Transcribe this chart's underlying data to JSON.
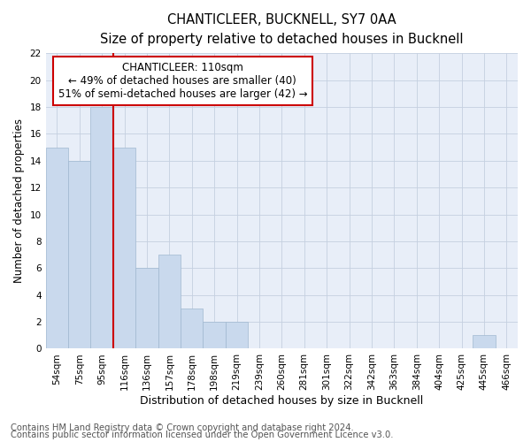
{
  "title": "CHANTICLEER, BUCKNELL, SY7 0AA",
  "subtitle": "Size of property relative to detached houses in Bucknell",
  "xlabel": "Distribution of detached houses by size in Bucknell",
  "ylabel": "Number of detached properties",
  "footnote1": "Contains HM Land Registry data © Crown copyright and database right 2024.",
  "footnote2": "Contains public sector information licensed under the Open Government Licence v3.0.",
  "categories": [
    "54sqm",
    "75sqm",
    "95sqm",
    "116sqm",
    "136sqm",
    "157sqm",
    "178sqm",
    "198sqm",
    "219sqm",
    "239sqm",
    "260sqm",
    "281sqm",
    "301sqm",
    "322sqm",
    "342sqm",
    "363sqm",
    "384sqm",
    "404sqm",
    "425sqm",
    "445sqm",
    "466sqm"
  ],
  "values": [
    15,
    14,
    18,
    15,
    6,
    7,
    3,
    2,
    2,
    0,
    0,
    0,
    0,
    0,
    0,
    0,
    0,
    0,
    0,
    1,
    0
  ],
  "bar_color": "#c9d9ed",
  "bar_edge_color": "#a0b8d0",
  "vline_x": 3.0,
  "vline_color": "#cc0000",
  "annotation_line1": "CHANTICLEER: 110sqm",
  "annotation_line2": "← 49% of detached houses are smaller (40)",
  "annotation_line3": "51% of semi-detached houses are larger (42) →",
  "annotation_box_color": "#ffffff",
  "annotation_box_edge": "#cc0000",
  "ylim": [
    0,
    22
  ],
  "yticks": [
    0,
    2,
    4,
    6,
    8,
    10,
    12,
    14,
    16,
    18,
    20,
    22
  ],
  "plot_bg_color": "#e8eef8",
  "background_color": "#ffffff",
  "grid_color": "#c5d0e0",
  "title_fontsize": 10.5,
  "subtitle_fontsize": 9.5,
  "xlabel_fontsize": 9,
  "ylabel_fontsize": 8.5,
  "tick_fontsize": 7.5,
  "annotation_fontsize": 8.5,
  "footnote_fontsize": 7.2
}
